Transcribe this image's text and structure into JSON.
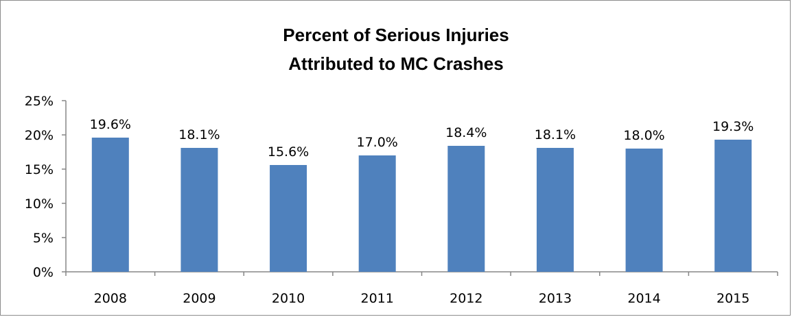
{
  "chart_data": {
    "type": "bar",
    "title_lines": [
      "Percent of Serious Injuries",
      "Attributed to MC Crashes"
    ],
    "categories": [
      "2008",
      "2009",
      "2010",
      "2011",
      "2012",
      "2013",
      "2014",
      "2015"
    ],
    "values": [
      19.6,
      18.1,
      15.6,
      17.0,
      18.4,
      18.1,
      18.0,
      19.3
    ],
    "data_labels": [
      "19.6%",
      "18.1%",
      "15.6%",
      "17.0%",
      "18.4%",
      "18.1%",
      "18.0%",
      "19.3%"
    ],
    "y_ticks": [
      0,
      5,
      10,
      15,
      20,
      25
    ],
    "y_tick_labels": [
      "0%",
      "5%",
      "10%",
      "15%",
      "20%",
      "25%"
    ],
    "ylim": [
      0,
      25
    ],
    "xlabel": "",
    "ylabel": "",
    "grid": false,
    "legend": "none",
    "bar_color": "#4f81bd"
  }
}
